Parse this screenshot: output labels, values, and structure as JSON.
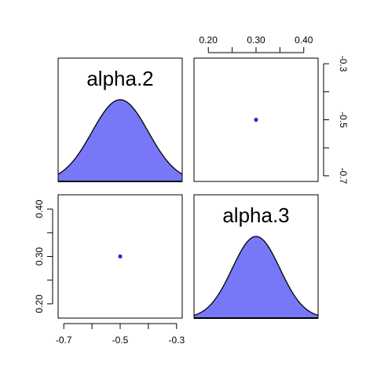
{
  "chart_data": {
    "type": "pairs",
    "variables": [
      "alpha.2",
      "alpha.3"
    ],
    "density_fill_color": "#7777f7",
    "point_color": "#2b2bd4",
    "panels": [
      {
        "id": "diag-alpha2",
        "row": 1,
        "col": 1,
        "kind": "density",
        "label": "alpha.2",
        "mean": -0.5,
        "sd": 0.1,
        "xlim": [
          -0.72,
          -0.28
        ]
      },
      {
        "id": "scatter-top",
        "row": 1,
        "col": 2,
        "kind": "scatter",
        "xlim": [
          0.17,
          0.43
        ],
        "ylim": [
          -0.72,
          -0.28
        ],
        "points": [
          {
            "x": 0.3,
            "y": -0.5
          }
        ],
        "top_axis": {
          "ticks": [
            0.2,
            0.25,
            0.3,
            0.35,
            0.4
          ],
          "labels": [
            "0.20",
            "",
            "0.30",
            "",
            "0.40"
          ]
        },
        "right_axis": {
          "ticks": [
            -0.3,
            -0.4,
            -0.5,
            -0.6,
            -0.7
          ],
          "labels": [
            "-0.3",
            "",
            "-0.5",
            "",
            "-0.7"
          ]
        }
      },
      {
        "id": "scatter-bottom",
        "row": 2,
        "col": 1,
        "kind": "scatter",
        "xlim": [
          -0.72,
          -0.28
        ],
        "ylim": [
          0.17,
          0.43
        ],
        "points": [
          {
            "x": -0.5,
            "y": 0.3
          }
        ],
        "bottom_axis": {
          "ticks": [
            -0.7,
            -0.6,
            -0.5,
            -0.4,
            -0.3
          ],
          "labels": [
            "-0.7",
            "",
            "-0.5",
            "",
            "-0.3"
          ]
        },
        "left_axis": {
          "ticks": [
            0.2,
            0.25,
            0.3,
            0.35,
            0.4
          ],
          "labels": [
            "0.20",
            "",
            "0.30",
            "",
            "0.40"
          ]
        }
      },
      {
        "id": "diag-alpha3",
        "row": 2,
        "col": 2,
        "kind": "density",
        "label": "alpha.3",
        "mean": 0.3,
        "sd": 0.05,
        "xlim": [
          0.17,
          0.43
        ]
      }
    ]
  }
}
